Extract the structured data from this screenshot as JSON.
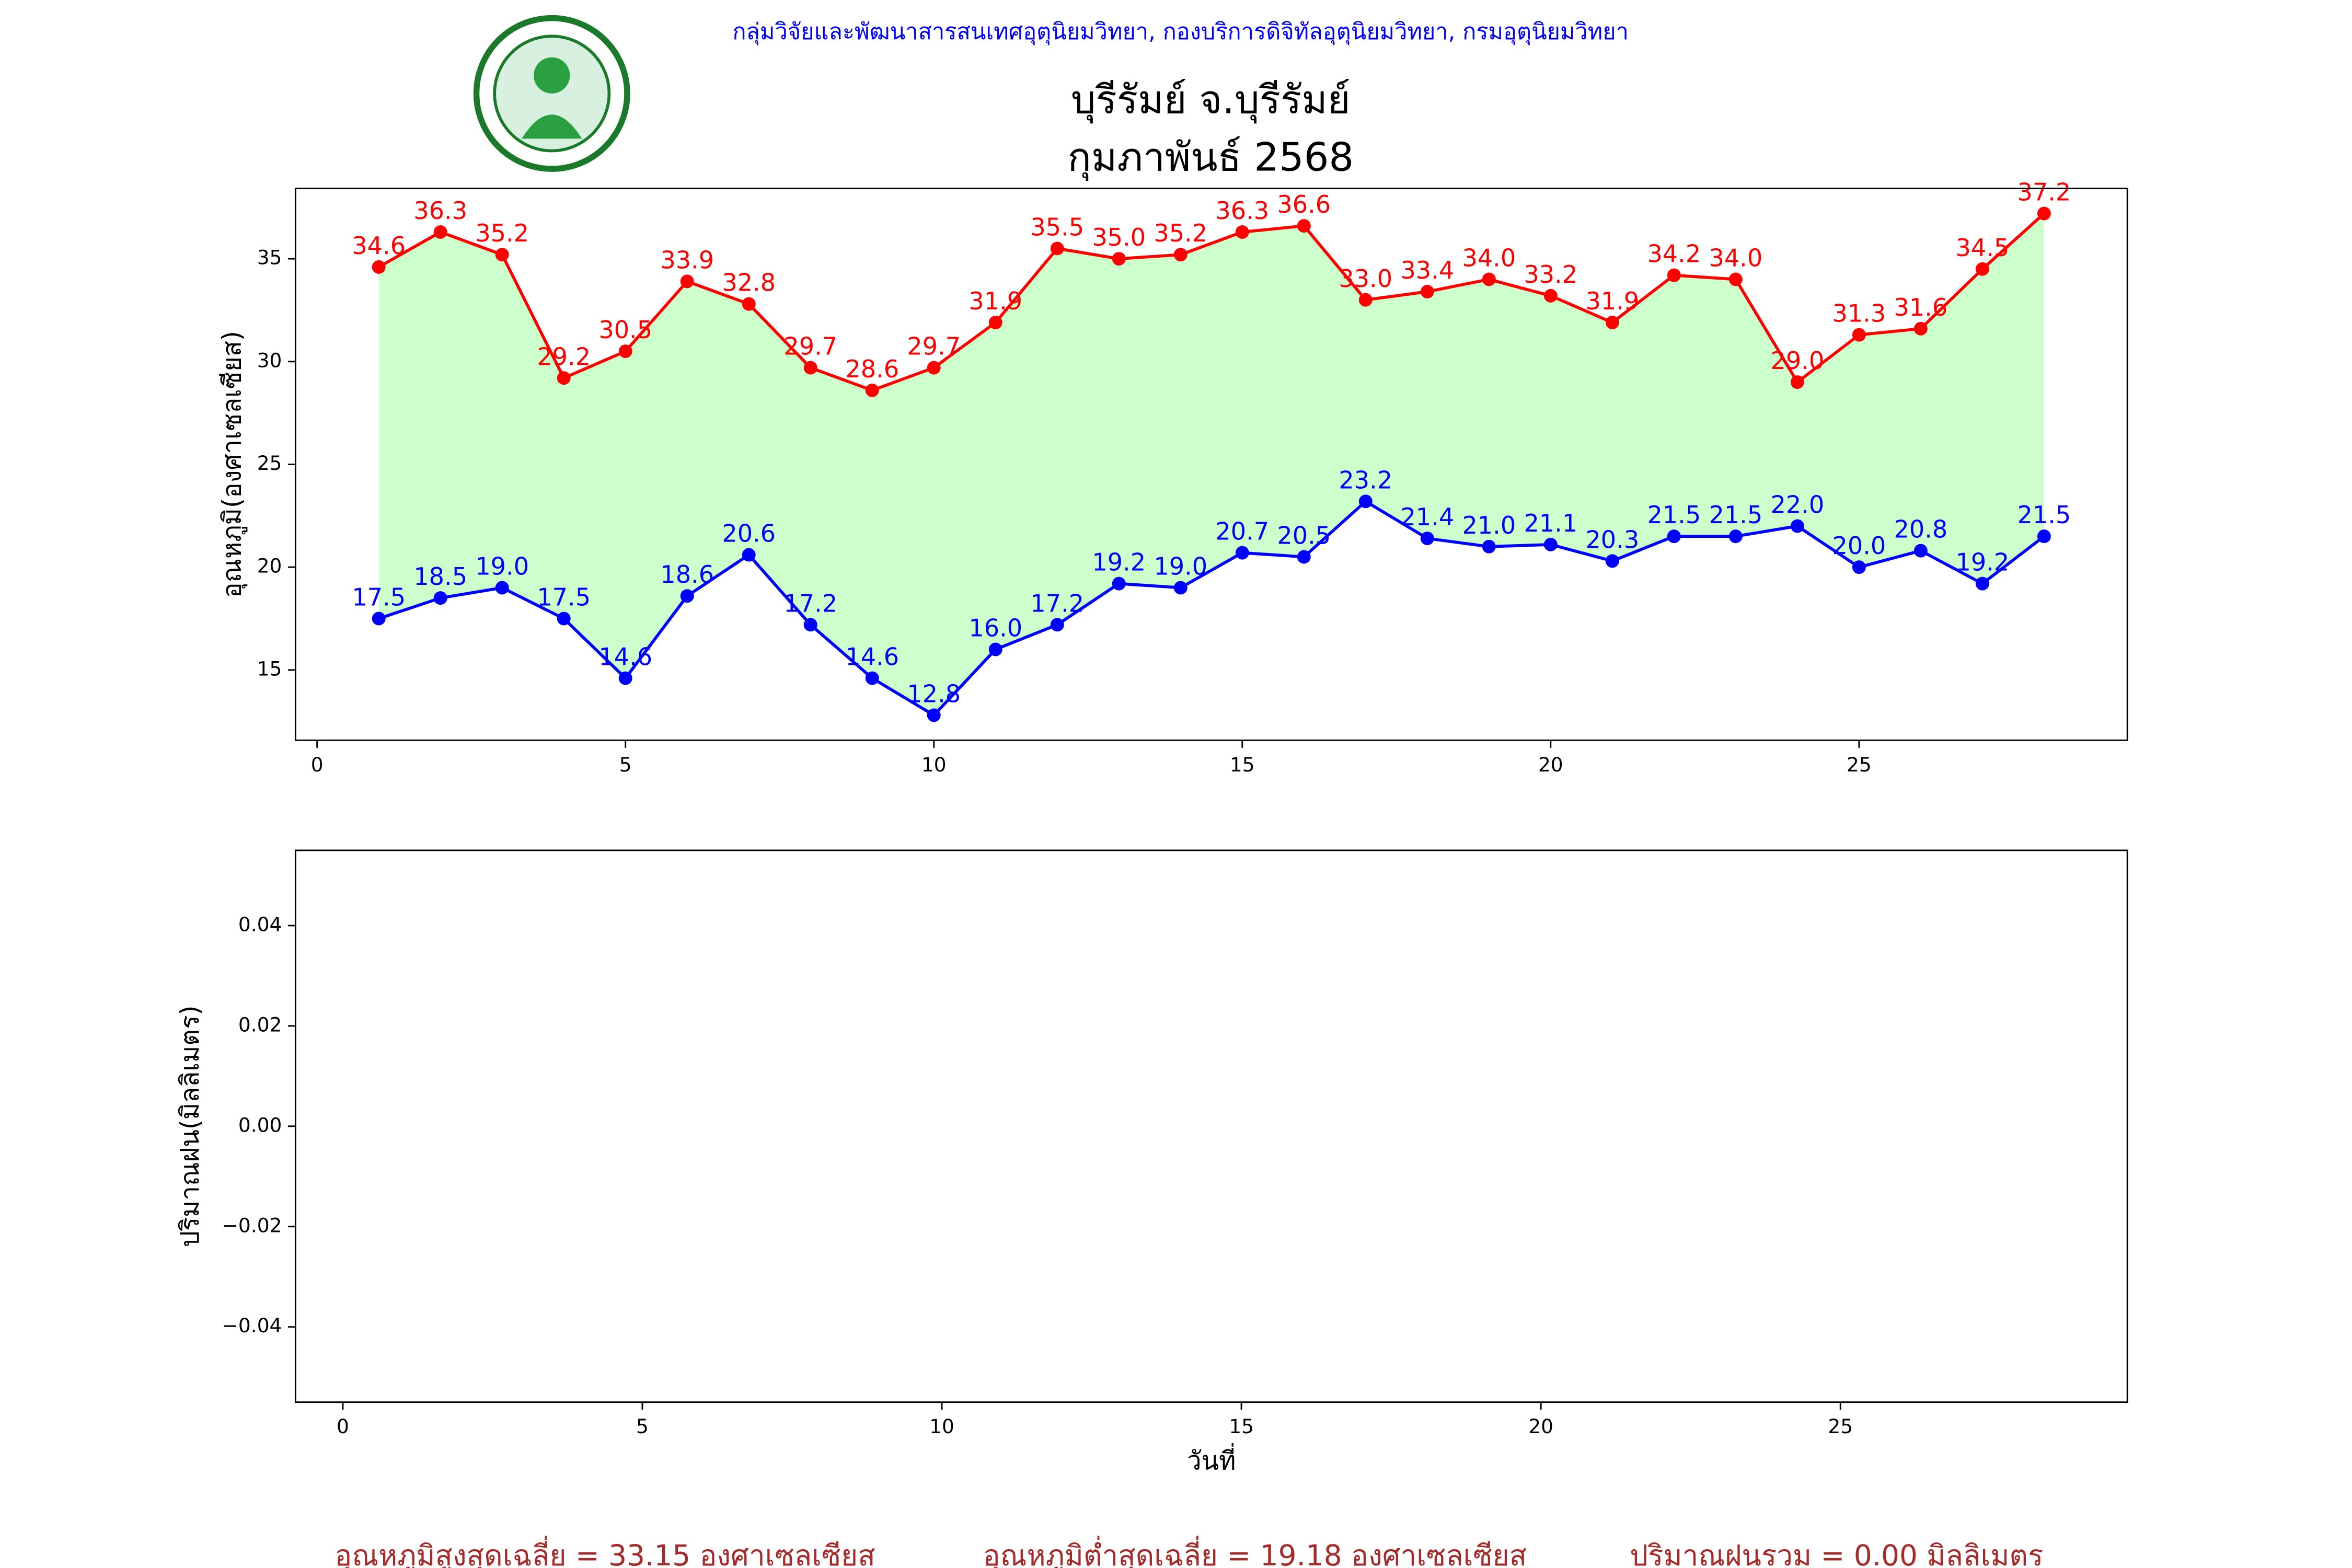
{
  "header": "กลุ่มวิจัยและพัฒนาสารสนเทศอุตุนิยมวิทยา, กองบริการดิจิทัลอุตุนิยมวิทยา, กรมอุตุนิยมวิทยา",
  "title": [
    "บุรีรัมย์ จ.บุรีรัมย์",
    "กุมภาพันธ์ 2568"
  ],
  "chart_data": [
    {
      "type": "line",
      "ylabel": "อุณหภูมิ(องศาเซลเซียส)",
      "x": [
        1,
        2,
        3,
        4,
        5,
        6,
        7,
        8,
        9,
        10,
        11,
        12,
        13,
        14,
        15,
        16,
        17,
        18,
        19,
        20,
        21,
        22,
        23,
        24,
        25,
        26,
        27,
        28
      ],
      "fill_color": "#ccffcc",
      "series": [
        {
          "color": "#ff0000",
          "values": [
            34.6,
            36.3,
            35.2,
            29.2,
            30.5,
            33.9,
            32.8,
            29.7,
            28.6,
            29.7,
            31.9,
            35.5,
            35.0,
            35.2,
            36.3,
            36.6,
            33.0,
            33.4,
            34.0,
            33.2,
            31.9,
            34.2,
            34.0,
            29.0,
            31.3,
            31.6,
            34.5,
            37.2
          ],
          "value_labels": [
            "34.6",
            "36.3",
            "35.2",
            "29.2",
            "30.5",
            "33.9",
            "32.8",
            "29.7",
            "28.6",
            "29.7",
            "31.9",
            "35.5",
            "35.0",
            "35.2",
            "36.3",
            "36.6",
            "33.0",
            "33.4",
            "34.0",
            "33.2",
            "31.9",
            "34.2",
            "34.0",
            "29.0",
            "31.3",
            "31.6",
            "34.5",
            "37.2"
          ]
        },
        {
          "color": "#0000ff",
          "values": [
            17.5,
            18.5,
            19.0,
            17.5,
            14.6,
            18.6,
            20.6,
            17.2,
            14.6,
            12.8,
            16.0,
            17.2,
            19.2,
            19.0,
            20.7,
            20.5,
            23.2,
            21.4,
            21.0,
            21.1,
            20.3,
            21.5,
            21.5,
            22.0,
            20.0,
            20.8,
            19.2,
            21.5
          ],
          "value_labels": [
            "17.5",
            "18.5",
            "19.0",
            "17.5",
            "14.6",
            "18.6",
            "20.6",
            "17.2",
            "14.6",
            "12.8",
            "16.0",
            "17.2",
            "19.2",
            "19.0",
            "20.7",
            "20.5",
            "23.2",
            "21.4",
            "21.0",
            "21.1",
            "20.3",
            "21.5",
            "21.5",
            "22.0",
            "20.0",
            "20.8",
            "19.2",
            "21.5"
          ]
        }
      ],
      "xlim": [
        -0.35,
        29.35
      ],
      "xticks": [
        0,
        5,
        10,
        15,
        20,
        25
      ],
      "ylim": [
        11.58,
        38.42
      ],
      "yticks": [
        15,
        20,
        25,
        30,
        35
      ]
    },
    {
      "type": "bar",
      "ylabel": "ปริมาณฝน(มิลลิเมตร)",
      "xlabel": "วันที่",
      "x": [
        1,
        2,
        3,
        4,
        5,
        6,
        7,
        8,
        9,
        10,
        11,
        12,
        13,
        14,
        15,
        16,
        17,
        18,
        19,
        20,
        21,
        22,
        23,
        24,
        25,
        26,
        27,
        28
      ],
      "color": "#ffd700",
      "values": [
        0,
        0,
        0,
        0,
        0,
        0,
        0,
        0,
        0,
        0,
        0,
        0,
        0,
        0,
        0,
        0,
        0,
        0,
        0,
        0,
        0,
        0,
        0,
        0,
        0,
        0,
        0,
        0
      ],
      "xlim": [
        -0.79,
        29.79
      ],
      "xticks": [
        0,
        5,
        10,
        15,
        20,
        25
      ],
      "ylim": [
        -0.055,
        0.055
      ],
      "yticks": [
        {
          "value": -0.04,
          "label": "−0.04"
        },
        {
          "value": -0.02,
          "label": "−0.02"
        },
        {
          "value": 0,
          "label": "0.00"
        },
        0.02,
        0.04
      ]
    }
  ],
  "footer": [
    "อุณหภูมิสูงสุดเฉลี่ย = 33.15 องศาเซลเซียส",
    "อุณหภูมิต่ำสุดเฉลี่ย = 19.18 องศาเซลเซียส",
    "ปริมาณฝนรวม = 0.00 มิลลิเมตร"
  ]
}
